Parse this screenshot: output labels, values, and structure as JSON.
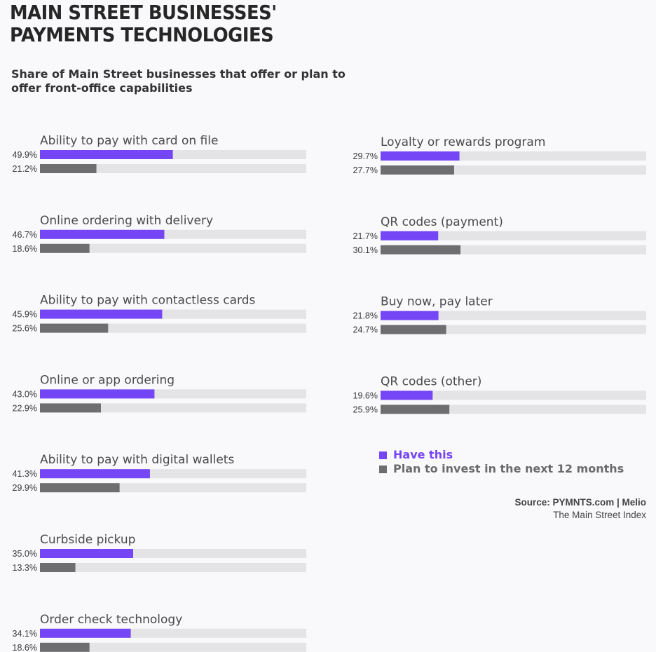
{
  "header": {
    "title_line1": "MAIN STREET BUSINESSES'",
    "title_line2": "PAYMENTS TECHNOLOGIES",
    "subtitle_line1": "Share of Main Street businesses that offer or plan to",
    "subtitle_line2": "offer front-office capabilities"
  },
  "legend": {
    "have": "Have this",
    "plan": "Plan to invest in the next 12 months"
  },
  "footer": {
    "source": "Source: PYMNTS.com  |  Melio",
    "index": "The Main Street Index"
  },
  "colors": {
    "have": "#7546f5",
    "plan": "#6e6e70",
    "track": "#e4e4e6",
    "legend_have_text": "#7546f5",
    "legend_plan_text": "#6a6a6a"
  },
  "chart_data": {
    "type": "bar",
    "orientation": "horizontal",
    "xlim": [
      0,
      100
    ],
    "unit": "%",
    "series": [
      {
        "name": "Have this",
        "key": "have"
      },
      {
        "name": "Plan to invest in the next 12 months",
        "key": "plan"
      }
    ],
    "left_column": [
      {
        "label": "Ability to pay with card on file",
        "have": 49.9,
        "plan": 21.2,
        "have_label": "49.9%",
        "plan_label": "21.2%"
      },
      {
        "label": "Online ordering with delivery",
        "have": 46.7,
        "plan": 18.6,
        "have_label": "46.7%",
        "plan_label": "18.6%"
      },
      {
        "label": "Ability to pay with contactless cards",
        "have": 45.9,
        "plan": 25.6,
        "have_label": "45.9%",
        "plan_label": "25.6%"
      },
      {
        "label": "Online or app ordering",
        "have": 43.0,
        "plan": 22.9,
        "have_label": "43.0%",
        "plan_label": "22.9%"
      },
      {
        "label": "Ability to pay with digital wallets",
        "have": 41.3,
        "plan": 29.9,
        "have_label": "41.3%",
        "plan_label": "29.9%"
      },
      {
        "label": "Curbside pickup",
        "have": 35.0,
        "plan": 13.3,
        "have_label": "35.0%",
        "plan_label": "13.3%"
      },
      {
        "label": "Order check technology",
        "have": 34.1,
        "plan": 18.6,
        "have_label": "34.1%",
        "plan_label": "18.6%"
      }
    ],
    "right_column": [
      {
        "label": "Loyalty or rewards program",
        "have": 29.7,
        "plan": 27.7,
        "have_label": "29.7%",
        "plan_label": "27.7%"
      },
      {
        "label": "QR codes (payment)",
        "have": 21.7,
        "plan": 30.1,
        "have_label": "21.7%",
        "plan_label": "30.1%"
      },
      {
        "label": "Buy now, pay later",
        "have": 21.8,
        "plan": 24.7,
        "have_label": "21.8%",
        "plan_label": "24.7%"
      },
      {
        "label": "QR codes (other)",
        "have": 19.6,
        "plan": 25.9,
        "have_label": "19.6%",
        "plan_label": "25.9%"
      }
    ]
  }
}
